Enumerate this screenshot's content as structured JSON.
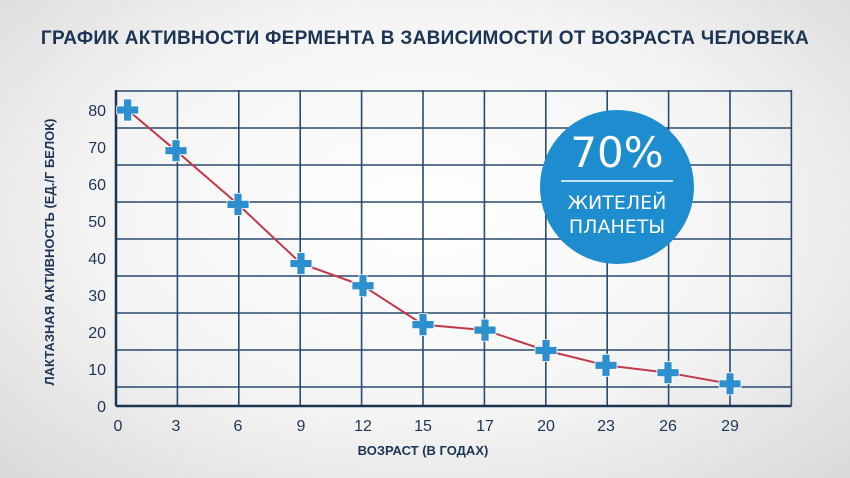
{
  "chart_data": {
    "type": "line",
    "title": "ГРАФИК АКТИВНОСТИ ФЕРМЕНТА В ЗАВИСИМОСТИ ОТ ВОЗРАСТА ЧЕЛОВЕКА",
    "xlabel": "ВОЗРАСТ (В ГОДАХ)",
    "ylabel": "ЛАКТАЗНАЯ АКТИВНОСТЬ (ЕД./Г БЕЛОК)",
    "x_ticks": [
      "0",
      "3",
      "6",
      "9",
      "12",
      "15",
      "17",
      "20",
      "23",
      "26",
      "29"
    ],
    "y_ticks": [
      "0",
      "10",
      "20",
      "30",
      "40",
      "50",
      "60",
      "70",
      "80"
    ],
    "ylim": [
      0,
      85
    ],
    "grid": true,
    "series": [
      {
        "color": "#c0394b",
        "marker_color": "#2e8fcf",
        "points": [
          {
            "x": 0.5,
            "y": 80
          },
          {
            "x": 3,
            "y": 69
          },
          {
            "x": 6,
            "y": 54.5
          },
          {
            "x": 9,
            "y": 38.5
          },
          {
            "x": 12,
            "y": 32.5
          },
          {
            "x": 15,
            "y": 22
          },
          {
            "x": 17,
            "y": 20.5
          },
          {
            "x": 20,
            "y": 15
          },
          {
            "x": 23,
            "y": 11
          },
          {
            "x": 26,
            "y": 9
          },
          {
            "x": 29,
            "y": 6
          }
        ]
      }
    ]
  },
  "badge": {
    "percent": "70%",
    "line1": "ЖИТЕЛЕЙ",
    "line2": "ПЛАНЕТЫ",
    "color": "#1d8dd0"
  }
}
